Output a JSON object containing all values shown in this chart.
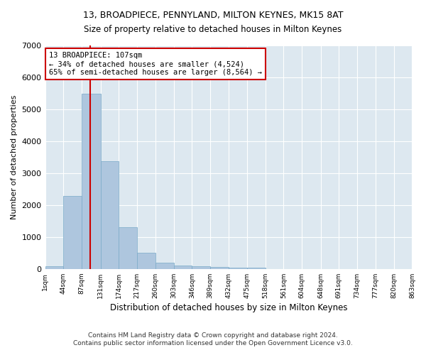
{
  "title": "13, BROADPIECE, PENNYLAND, MILTON KEYNES, MK15 8AT",
  "subtitle": "Size of property relative to detached houses in Milton Keynes",
  "xlabel": "Distribution of detached houses by size in Milton Keynes",
  "ylabel": "Number of detached properties",
  "footer_line1": "Contains HM Land Registry data © Crown copyright and database right 2024.",
  "footer_line2": "Contains public sector information licensed under the Open Government Licence v3.0.",
  "annotation_line1": "13 BROADPIECE: 107sqm",
  "annotation_line2": "← 34% of detached houses are smaller (4,524)",
  "annotation_line3": "65% of semi-detached houses are larger (8,564) →",
  "property_size": 107,
  "bin_edges": [
    1,
    44,
    87,
    131,
    174,
    217,
    260,
    303,
    346,
    389,
    432,
    475,
    518,
    561,
    604,
    648,
    691,
    734,
    777,
    820,
    863
  ],
  "bar_heights": [
    80,
    2280,
    5480,
    3380,
    1310,
    510,
    190,
    105,
    75,
    55,
    40,
    30,
    0,
    0,
    0,
    0,
    0,
    0,
    0,
    0
  ],
  "bar_color": "#aec6de",
  "bar_edge_color": "#7aaac8",
  "vline_color": "#cc0000",
  "vline_x": 107,
  "annotation_box_edge_color": "#cc0000",
  "annotation_box_face_color": "#ffffff",
  "plot_bg_color": "#dde8f0",
  "figure_bg_color": "#ffffff",
  "ylim": [
    0,
    7000
  ],
  "yticks": [
    0,
    1000,
    2000,
    3000,
    4000,
    5000,
    6000,
    7000
  ],
  "tick_labels": [
    "1sqm",
    "44sqm",
    "87sqm",
    "131sqm",
    "174sqm",
    "217sqm",
    "260sqm",
    "303sqm",
    "346sqm",
    "389sqm",
    "432sqm",
    "475sqm",
    "518sqm",
    "561sqm",
    "604sqm",
    "648sqm",
    "691sqm",
    "734sqm",
    "777sqm",
    "820sqm",
    "863sqm"
  ],
  "title_fontsize": 9,
  "subtitle_fontsize": 8.5,
  "ylabel_fontsize": 8,
  "xlabel_fontsize": 8.5,
  "footer_fontsize": 6.5
}
